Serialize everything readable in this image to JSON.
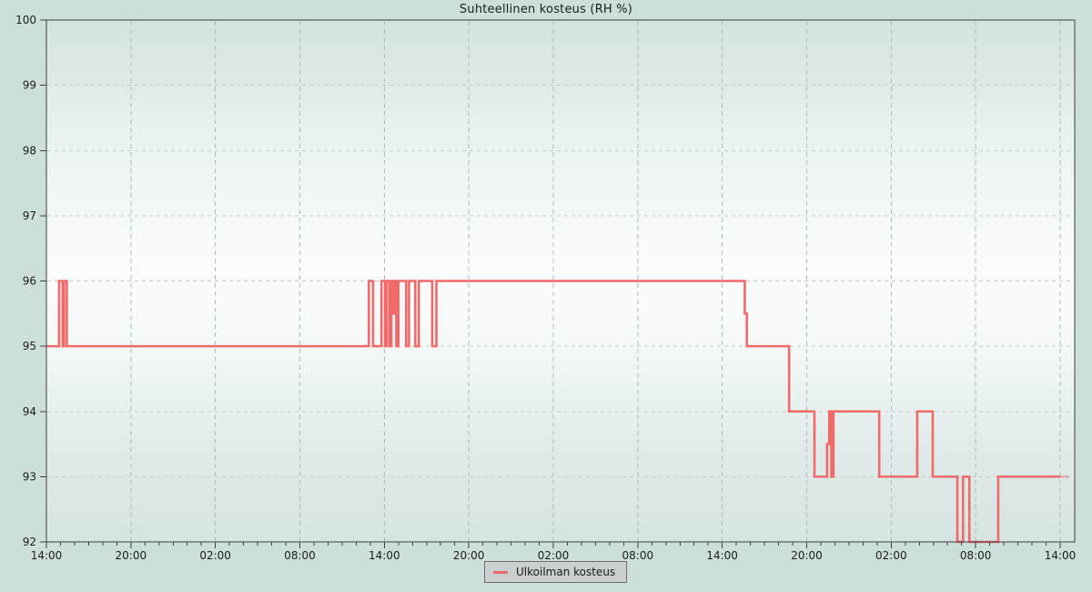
{
  "title": "Suhteellinen kosteus (RH %)",
  "colors": {
    "page_bg": "#cddfdc",
    "plot_top": "#d3e2e0",
    "plot_mid": "#fbfdfd",
    "plot_bottom": "#d6e4e2",
    "axis": "#3f3f3f",
    "grid_horizontal": "#c6cbca",
    "grid_vertical": "#b1b8b7",
    "line": "#f06a6a",
    "text": "#1b1b1b",
    "legend_bg": "#c9d0cf",
    "legend_border": "#6e6e6e"
  },
  "chart_data": {
    "type": "line",
    "step": "after",
    "title": "Suhteellinen kosteus (RH %)",
    "grid": "dashed",
    "legend_position": "bottom-center",
    "x_axis": {
      "total_hours": 72,
      "major_tick_hours": 6,
      "minor_tick_hours": 1,
      "tick_labels": [
        "14:00",
        "20:00",
        "02:00",
        "08:00",
        "14:00",
        "20:00",
        "02:00",
        "08:00",
        "14:00",
        "20:00",
        "02:00",
        "08:00",
        "14:00"
      ]
    },
    "y_axis": {
      "min": 92,
      "max": 100,
      "ticks": [
        100,
        99,
        98,
        97,
        96,
        95,
        94,
        93,
        92
      ],
      "gridline_values": [
        93,
        94,
        95,
        96,
        97,
        98,
        99
      ]
    },
    "series": [
      {
        "name": "Ulkoilman kosteus",
        "color": "#f06a6a",
        "unit": "RH %",
        "points_hours_value": [
          [
            0,
            95
          ],
          [
            0.9,
            96
          ],
          [
            1.15,
            95
          ],
          [
            1.25,
            96
          ],
          [
            1.45,
            95
          ],
          [
            22.9,
            96
          ],
          [
            23.2,
            95
          ],
          [
            23.8,
            96
          ],
          [
            24.05,
            95
          ],
          [
            24.15,
            96
          ],
          [
            24.35,
            95
          ],
          [
            24.5,
            96
          ],
          [
            24.65,
            95.5
          ],
          [
            24.75,
            96
          ],
          [
            24.85,
            95
          ],
          [
            25.0,
            96
          ],
          [
            25.55,
            95
          ],
          [
            25.75,
            96
          ],
          [
            26.2,
            95
          ],
          [
            26.45,
            96
          ],
          [
            27.4,
            95
          ],
          [
            27.7,
            96
          ],
          [
            49.6,
            95.5
          ],
          [
            49.75,
            95
          ],
          [
            52.75,
            94
          ],
          [
            54.55,
            93
          ],
          [
            55.45,
            93.5
          ],
          [
            55.6,
            94
          ],
          [
            55.75,
            93
          ],
          [
            55.9,
            94
          ],
          [
            59.15,
            93
          ],
          [
            61.85,
            94
          ],
          [
            62.95,
            93
          ],
          [
            64.7,
            92
          ],
          [
            65.1,
            93
          ],
          [
            65.55,
            92
          ],
          [
            67.6,
            93
          ]
        ]
      }
    ],
    "tail": {
      "from_hours": 72,
      "to_hours": 72.6,
      "value": 93,
      "opacity": 0.45
    },
    "legend": {
      "label": "Ulkoilman kosteus"
    }
  }
}
